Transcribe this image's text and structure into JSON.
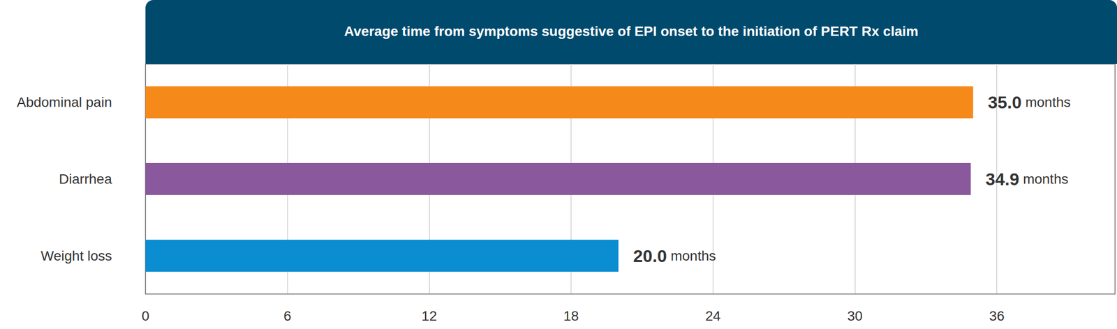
{
  "chart_data": {
    "type": "bar",
    "orientation": "horizontal",
    "title": "Average time from symptoms suggestive of EPI onset to the initiation of PERT Rx claim",
    "categories": [
      "Abdominal pain",
      "Diarrhea",
      "Weight loss"
    ],
    "values": [
      35.0,
      34.9,
      20.0
    ],
    "value_labels": [
      "35.0 months",
      "34.9 months",
      "20.0 months"
    ],
    "colors": [
      "#f5891a",
      "#8a589c",
      "#0b8dd2"
    ],
    "xlim": [
      0,
      41
    ],
    "xticks": [
      0,
      6,
      12,
      18,
      24,
      30,
      36
    ],
    "grid": true,
    "data_labels": true
  }
}
